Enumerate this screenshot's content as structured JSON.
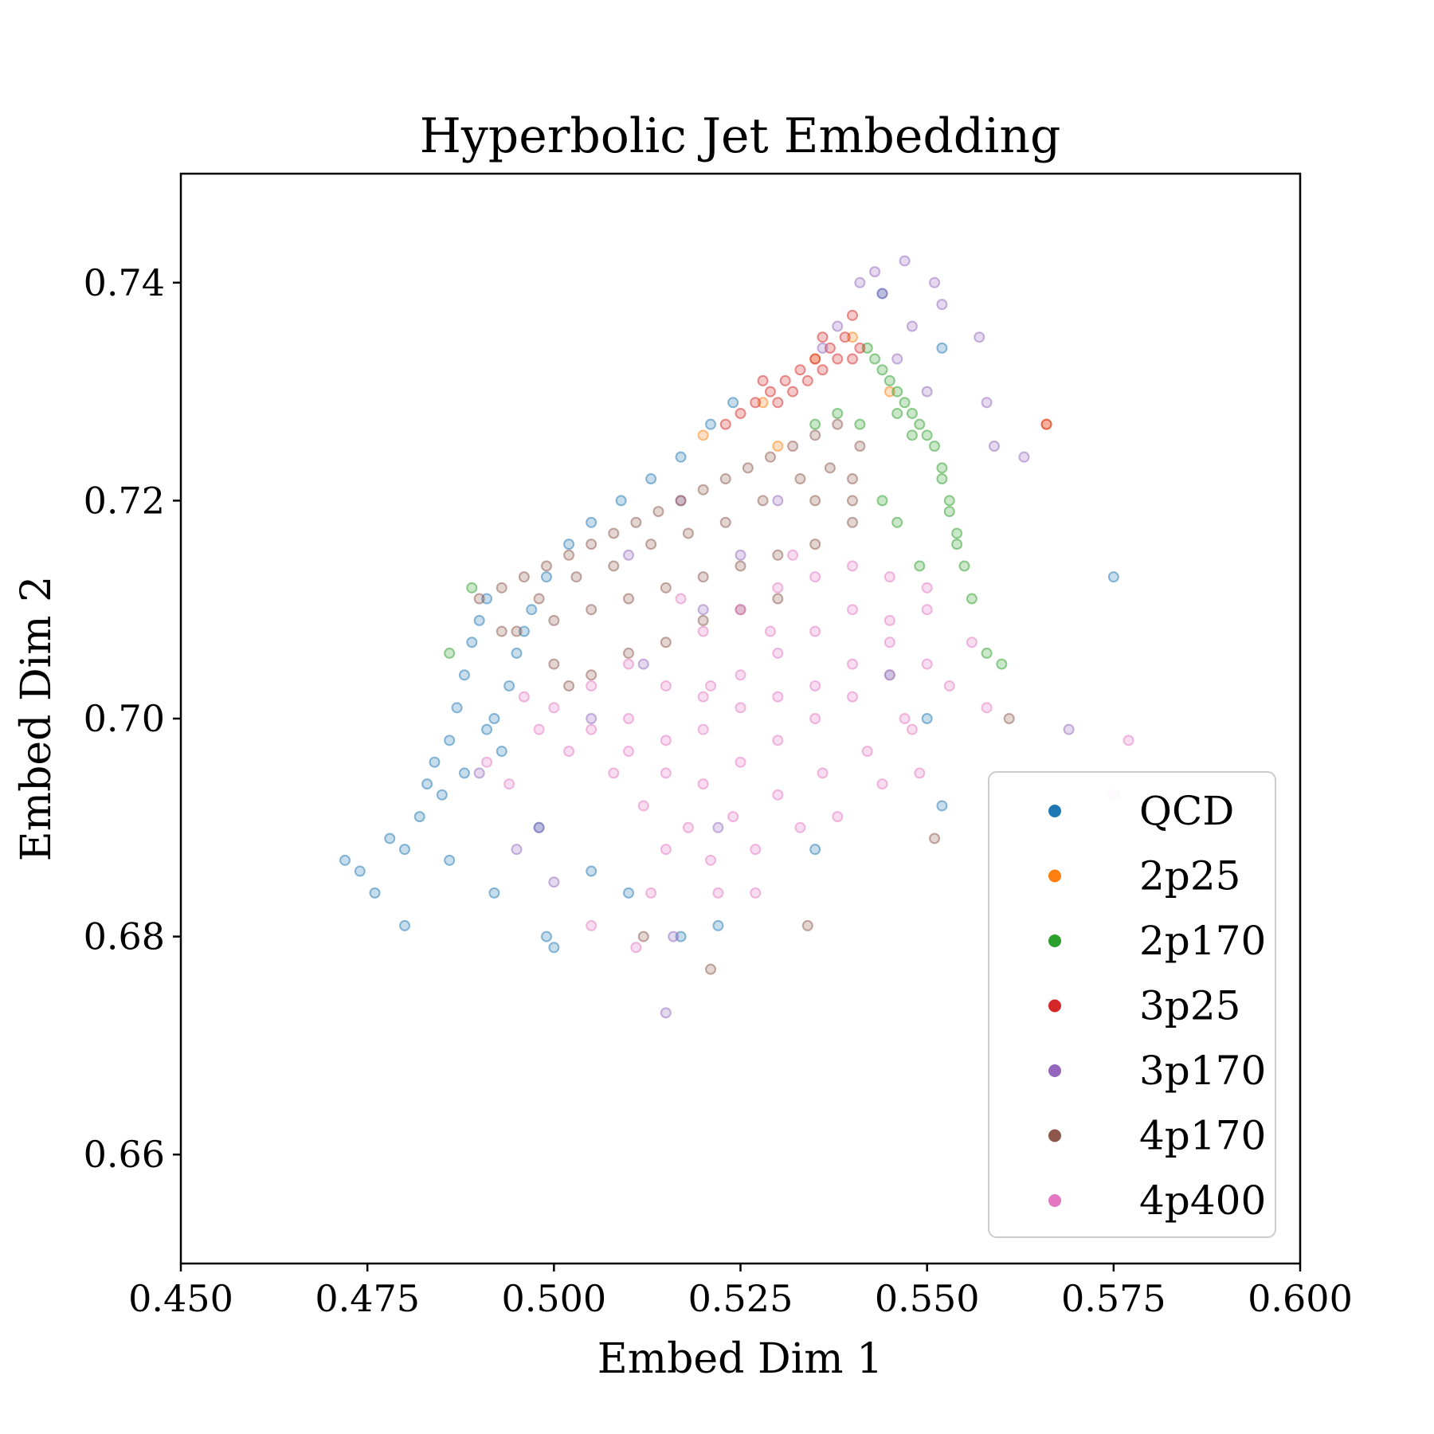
{
  "chart_data": {
    "type": "scatter",
    "title": "Hyperbolic Jet Embedding",
    "xlabel": "Embed Dim 1",
    "ylabel": "Embed Dim 2",
    "xlim": [
      0.45,
      0.6
    ],
    "ylim": [
      0.65,
      0.75
    ],
    "xticks": [
      "0.450",
      "0.475",
      "0.500",
      "0.525",
      "0.550",
      "0.575",
      "0.600"
    ],
    "yticks": [
      "0.66",
      "0.68",
      "0.70",
      "0.72",
      "0.74"
    ],
    "grid": false,
    "legend_position": "lower right",
    "marker": "hollow circle, semi-transparent",
    "series": [
      {
        "name": "QCD",
        "color": "#1f77b4",
        "points": [
          [
            0.472,
            0.687
          ],
          [
            0.474,
            0.686
          ],
          [
            0.476,
            0.684
          ],
          [
            0.478,
            0.689
          ],
          [
            0.48,
            0.688
          ],
          [
            0.482,
            0.691
          ],
          [
            0.483,
            0.694
          ],
          [
            0.484,
            0.696
          ],
          [
            0.485,
            0.693
          ],
          [
            0.486,
            0.698
          ],
          [
            0.487,
            0.701
          ],
          [
            0.488,
            0.704
          ],
          [
            0.489,
            0.707
          ],
          [
            0.49,
            0.709
          ],
          [
            0.491,
            0.711
          ],
          [
            0.492,
            0.7
          ],
          [
            0.493,
            0.697
          ],
          [
            0.494,
            0.703
          ],
          [
            0.495,
            0.706
          ],
          [
            0.497,
            0.71
          ],
          [
            0.499,
            0.713
          ],
          [
            0.502,
            0.716
          ],
          [
            0.505,
            0.718
          ],
          [
            0.509,
            0.72
          ],
          [
            0.513,
            0.722
          ],
          [
            0.517,
            0.724
          ],
          [
            0.521,
            0.727
          ],
          [
            0.524,
            0.729
          ],
          [
            0.499,
            0.68
          ],
          [
            0.5,
            0.679
          ],
          [
            0.517,
            0.68
          ],
          [
            0.522,
            0.681
          ],
          [
            0.575,
            0.713
          ],
          [
            0.552,
            0.692
          ],
          [
            0.55,
            0.7
          ],
          [
            0.545,
            0.704
          ],
          [
            0.498,
            0.69
          ],
          [
            0.505,
            0.686
          ],
          [
            0.51,
            0.684
          ],
          [
            0.535,
            0.688
          ],
          [
            0.48,
            0.681
          ],
          [
            0.486,
            0.687
          ],
          [
            0.492,
            0.684
          ],
          [
            0.552,
            0.734
          ],
          [
            0.544,
            0.739
          ],
          [
            0.488,
            0.695
          ],
          [
            0.491,
            0.699
          ],
          [
            0.496,
            0.708
          ]
        ]
      },
      {
        "name": "2p25",
        "color": "#ff7f0e",
        "points": [
          [
            0.52,
            0.726
          ],
          [
            0.528,
            0.729
          ],
          [
            0.535,
            0.733
          ],
          [
            0.54,
            0.735
          ],
          [
            0.566,
            0.727
          ],
          [
            0.545,
            0.73
          ],
          [
            0.53,
            0.725
          ]
        ]
      },
      {
        "name": "2p170",
        "color": "#2ca02c",
        "points": [
          [
            0.542,
            0.734
          ],
          [
            0.543,
            0.733
          ],
          [
            0.544,
            0.732
          ],
          [
            0.545,
            0.731
          ],
          [
            0.546,
            0.73
          ],
          [
            0.547,
            0.729
          ],
          [
            0.548,
            0.728
          ],
          [
            0.549,
            0.727
          ],
          [
            0.55,
            0.726
          ],
          [
            0.551,
            0.725
          ],
          [
            0.552,
            0.723
          ],
          [
            0.553,
            0.72
          ],
          [
            0.554,
            0.717
          ],
          [
            0.555,
            0.714
          ],
          [
            0.556,
            0.711
          ],
          [
            0.548,
            0.726
          ],
          [
            0.546,
            0.728
          ],
          [
            0.552,
            0.722
          ],
          [
            0.554,
            0.716
          ],
          [
            0.535,
            0.727
          ],
          [
            0.538,
            0.728
          ],
          [
            0.541,
            0.727
          ],
          [
            0.544,
            0.72
          ],
          [
            0.546,
            0.718
          ],
          [
            0.549,
            0.714
          ],
          [
            0.56,
            0.705
          ],
          [
            0.558,
            0.706
          ],
          [
            0.489,
            0.712
          ],
          [
            0.486,
            0.706
          ],
          [
            0.553,
            0.719
          ]
        ]
      },
      {
        "name": "3p25",
        "color": "#d62728",
        "points": [
          [
            0.523,
            0.727
          ],
          [
            0.525,
            0.728
          ],
          [
            0.527,
            0.729
          ],
          [
            0.529,
            0.73
          ],
          [
            0.531,
            0.731
          ],
          [
            0.533,
            0.732
          ],
          [
            0.535,
            0.733
          ],
          [
            0.537,
            0.734
          ],
          [
            0.539,
            0.735
          ],
          [
            0.541,
            0.734
          ],
          [
            0.534,
            0.731
          ],
          [
            0.536,
            0.732
          ],
          [
            0.538,
            0.733
          ],
          [
            0.54,
            0.733
          ],
          [
            0.53,
            0.729
          ],
          [
            0.532,
            0.73
          ],
          [
            0.54,
            0.737
          ],
          [
            0.536,
            0.735
          ],
          [
            0.528,
            0.731
          ],
          [
            0.566,
            0.727
          ]
        ]
      },
      {
        "name": "3p170",
        "color": "#9467bd",
        "points": [
          [
            0.543,
            0.741
          ],
          [
            0.547,
            0.742
          ],
          [
            0.544,
            0.739
          ],
          [
            0.541,
            0.74
          ],
          [
            0.551,
            0.74
          ],
          [
            0.548,
            0.736
          ],
          [
            0.552,
            0.738
          ],
          [
            0.557,
            0.735
          ],
          [
            0.558,
            0.729
          ],
          [
            0.563,
            0.724
          ],
          [
            0.559,
            0.725
          ],
          [
            0.569,
            0.699
          ],
          [
            0.515,
            0.673
          ],
          [
            0.53,
            0.72
          ],
          [
            0.52,
            0.71
          ],
          [
            0.525,
            0.715
          ],
          [
            0.512,
            0.705
          ],
          [
            0.505,
            0.7
          ],
          [
            0.498,
            0.69
          ],
          [
            0.495,
            0.688
          ],
          [
            0.49,
            0.695
          ],
          [
            0.536,
            0.734
          ],
          [
            0.538,
            0.736
          ],
          [
            0.546,
            0.733
          ],
          [
            0.55,
            0.73
          ],
          [
            0.516,
            0.68
          ],
          [
            0.522,
            0.69
          ],
          [
            0.5,
            0.685
          ],
          [
            0.51,
            0.715
          ],
          [
            0.517,
            0.72
          ]
        ]
      },
      {
        "name": "4p170",
        "color": "#8c564b",
        "points": [
          [
            0.49,
            0.711
          ],
          [
            0.493,
            0.712
          ],
          [
            0.496,
            0.713
          ],
          [
            0.499,
            0.714
          ],
          [
            0.502,
            0.715
          ],
          [
            0.505,
            0.716
          ],
          [
            0.508,
            0.717
          ],
          [
            0.511,
            0.718
          ],
          [
            0.514,
            0.719
          ],
          [
            0.517,
            0.72
          ],
          [
            0.52,
            0.721
          ],
          [
            0.523,
            0.722
          ],
          [
            0.526,
            0.723
          ],
          [
            0.529,
            0.724
          ],
          [
            0.532,
            0.725
          ],
          [
            0.535,
            0.726
          ],
          [
            0.538,
            0.727
          ],
          [
            0.541,
            0.725
          ],
          [
            0.495,
            0.708
          ],
          [
            0.5,
            0.709
          ],
          [
            0.505,
            0.71
          ],
          [
            0.51,
            0.711
          ],
          [
            0.515,
            0.712
          ],
          [
            0.52,
            0.713
          ],
          [
            0.525,
            0.714
          ],
          [
            0.53,
            0.715
          ],
          [
            0.535,
            0.716
          ],
          [
            0.54,
            0.718
          ],
          [
            0.5,
            0.705
          ],
          [
            0.505,
            0.704
          ],
          [
            0.51,
            0.706
          ],
          [
            0.515,
            0.707
          ],
          [
            0.52,
            0.709
          ],
          [
            0.525,
            0.71
          ],
          [
            0.53,
            0.711
          ],
          [
            0.535,
            0.72
          ],
          [
            0.54,
            0.722
          ],
          [
            0.498,
            0.711
          ],
          [
            0.503,
            0.713
          ],
          [
            0.508,
            0.714
          ],
          [
            0.513,
            0.716
          ],
          [
            0.518,
            0.717
          ],
          [
            0.523,
            0.718
          ],
          [
            0.528,
            0.72
          ],
          [
            0.533,
            0.722
          ],
          [
            0.537,
            0.723
          ],
          [
            0.54,
            0.72
          ],
          [
            0.521,
            0.677
          ],
          [
            0.534,
            0.681
          ],
          [
            0.561,
            0.7
          ],
          [
            0.551,
            0.689
          ],
          [
            0.512,
            0.68
          ],
          [
            0.493,
            0.708
          ],
          [
            0.502,
            0.703
          ]
        ]
      },
      {
        "name": "4p400",
        "color": "#e377c2",
        "points": [
          [
            0.51,
            0.705
          ],
          [
            0.515,
            0.703
          ],
          [
            0.52,
            0.702
          ],
          [
            0.525,
            0.704
          ],
          [
            0.53,
            0.706
          ],
          [
            0.535,
            0.708
          ],
          [
            0.54,
            0.71
          ],
          [
            0.545,
            0.709
          ],
          [
            0.505,
            0.699
          ],
          [
            0.51,
            0.697
          ],
          [
            0.515,
            0.695
          ],
          [
            0.52,
            0.694
          ],
          [
            0.525,
            0.696
          ],
          [
            0.53,
            0.698
          ],
          [
            0.535,
            0.7
          ],
          [
            0.54,
            0.702
          ],
          [
            0.545,
            0.704
          ],
          [
            0.55,
            0.705
          ],
          [
            0.5,
            0.701
          ],
          [
            0.505,
            0.703
          ],
          [
            0.51,
            0.7
          ],
          [
            0.515,
            0.698
          ],
          [
            0.52,
            0.699
          ],
          [
            0.525,
            0.701
          ],
          [
            0.53,
            0.702
          ],
          [
            0.535,
            0.703
          ],
          [
            0.54,
            0.705
          ],
          [
            0.545,
            0.707
          ],
          [
            0.55,
            0.71
          ],
          [
            0.512,
            0.692
          ],
          [
            0.518,
            0.69
          ],
          [
            0.524,
            0.691
          ],
          [
            0.53,
            0.693
          ],
          [
            0.536,
            0.695
          ],
          [
            0.542,
            0.697
          ],
          [
            0.548,
            0.699
          ],
          [
            0.515,
            0.688
          ],
          [
            0.521,
            0.687
          ],
          [
            0.527,
            0.688
          ],
          [
            0.533,
            0.69
          ],
          [
            0.508,
            0.695
          ],
          [
            0.502,
            0.697
          ],
          [
            0.498,
            0.699
          ],
          [
            0.496,
            0.702
          ],
          [
            0.52,
            0.708
          ],
          [
            0.525,
            0.71
          ],
          [
            0.53,
            0.712
          ],
          [
            0.535,
            0.713
          ],
          [
            0.54,
            0.714
          ],
          [
            0.545,
            0.713
          ],
          [
            0.55,
            0.712
          ],
          [
            0.527,
            0.684
          ],
          [
            0.522,
            0.684
          ],
          [
            0.513,
            0.684
          ],
          [
            0.547,
            0.7
          ],
          [
            0.553,
            0.703
          ],
          [
            0.556,
            0.707
          ],
          [
            0.558,
            0.701
          ],
          [
            0.577,
            0.698
          ],
          [
            0.575,
            0.693
          ],
          [
            0.511,
            0.679
          ],
          [
            0.505,
            0.681
          ],
          [
            0.532,
            0.715
          ],
          [
            0.517,
            0.711
          ],
          [
            0.538,
            0.691
          ],
          [
            0.544,
            0.694
          ],
          [
            0.549,
            0.695
          ],
          [
            0.491,
            0.696
          ],
          [
            0.494,
            0.694
          ],
          [
            0.529,
            0.708
          ],
          [
            0.521,
            0.703
          ]
        ]
      }
    ]
  }
}
